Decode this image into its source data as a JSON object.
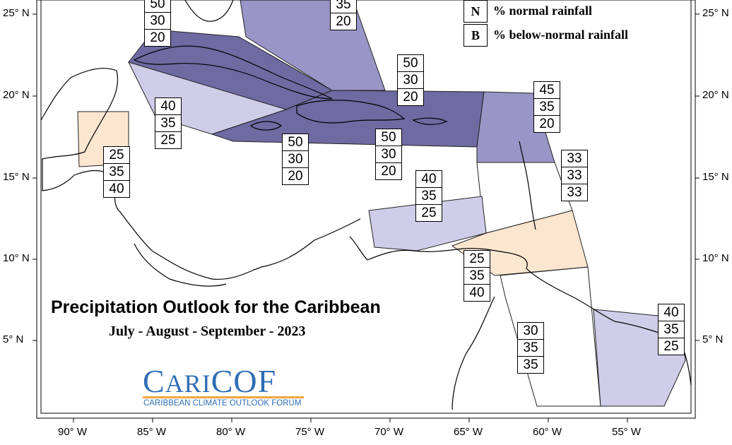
{
  "title": "Precipitation Outlook for the Caribbean",
  "subtitle": "July - August - September - 2023",
  "legend": [
    {
      "key": "N",
      "text": "% normal rainfall"
    },
    {
      "key": "B",
      "text": "% below-normal rainfall"
    }
  ],
  "latitude_labels": [
    "25° N",
    "20° N",
    "15° N",
    "10° N",
    "5° N"
  ],
  "longitude_labels": [
    "90° W",
    "85° W",
    "80° W",
    "75° W",
    "70° W",
    "65° W",
    "60° W",
    "55° W"
  ],
  "logo": {
    "name_big1": "C",
    "name_small": "ARI",
    "name_big2": "COF",
    "tagline": "CARIBBEAN CLIMATE OUTLOOK FORUM"
  },
  "colors": {
    "dark_purple": "#6e6aa2",
    "medium_purple": "#9995c6",
    "light_purple": "#cfcde8",
    "light_peach": "#fbe6d0",
    "logo_blue": "#2f6db5",
    "logo_orange": "#f1a640"
  },
  "regions": [
    {
      "name": "bahamas-north",
      "values": [
        "50",
        "30",
        "20"
      ],
      "shade": "dark_purple"
    },
    {
      "name": "bahamas-east",
      "values": [
        "35",
        "20"
      ],
      "shade": "medium_purple"
    },
    {
      "name": "cuba-west",
      "values": [
        "40",
        "35",
        "25"
      ],
      "shade": "light_purple"
    },
    {
      "name": "jamaica",
      "values": [
        "50",
        "30",
        "20"
      ],
      "shade": "dark_purple"
    },
    {
      "name": "hispaniola-puerto-rico",
      "values": [
        "50",
        "30",
        "20"
      ],
      "shade": "dark_purple"
    },
    {
      "name": "hispaniola-south",
      "values": [
        "50",
        "30",
        "20"
      ],
      "shade": "dark_purple"
    },
    {
      "name": "leeward-islands",
      "values": [
        "45",
        "35",
        "20"
      ],
      "shade": "medium_purple"
    },
    {
      "name": "windward-islands",
      "values": [
        "33",
        "33",
        "33"
      ],
      "shade": "none"
    },
    {
      "name": "belize",
      "values": [
        "25",
        "35",
        "40"
      ],
      "shade": "light_peach"
    },
    {
      "name": "abc-islands",
      "values": [
        "40",
        "35",
        "25"
      ],
      "shade": "light_purple"
    },
    {
      "name": "trinidad",
      "values": [
        "25",
        "35",
        "40"
      ],
      "shade": "light_peach"
    },
    {
      "name": "guyana",
      "values": [
        "30",
        "35",
        "35"
      ],
      "shade": "none"
    },
    {
      "name": "suriname-french-guiana",
      "values": [
        "40",
        "35",
        "25"
      ],
      "shade": "light_purple"
    }
  ]
}
